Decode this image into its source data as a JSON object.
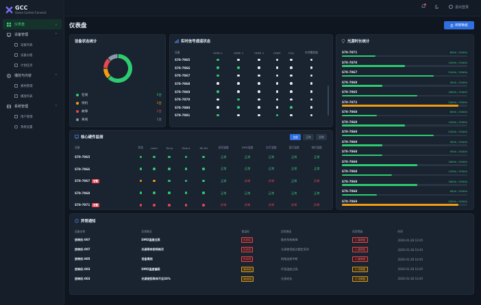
{
  "app": {
    "logo_title": "GCC",
    "logo_sub": "Game Control Connect"
  },
  "sidebar": {
    "dashboard": "仪表盘",
    "device_mgmt": "设备管理",
    "device_list": "设备列表",
    "device_group": "设备分组",
    "schedule": "计划任务",
    "content": "播控与内容",
    "assets": "素材管理",
    "playlist": "播放列表",
    "system": "系统管理",
    "users": "用户管理",
    "settings": "系统设置"
  },
  "topbar": {
    "logout": "退出登录"
  },
  "page": {
    "title": "仪表盘",
    "refresh": "刷新数据"
  },
  "device_status": {
    "title": "设备状态统计",
    "items": [
      {
        "label": "在线",
        "value": "5台",
        "color": "#2ecc71"
      },
      {
        "label": "待机",
        "value": "1台",
        "color": "#f39c12"
      },
      {
        "label": "故障",
        "value": "1台",
        "color": "#e5484d"
      },
      {
        "label": "离线",
        "value": "1台",
        "color": "#8b98a9"
      }
    ],
    "donut": [
      5,
      1,
      1,
      1
    ]
  },
  "signal": {
    "title": "实时信号通道状态",
    "headers": [
      "设备",
      "HDMI 1",
      "HDMI 2",
      "HDMI 3",
      "HDBT",
      "VGA",
      "本地播放器"
    ],
    "rows": [
      {
        "name": "S70-7065",
        "v": [
          "g",
          "w",
          "w",
          "w",
          "w",
          "w"
        ]
      },
      {
        "name": "S70-7066",
        "v": [
          "g",
          "g",
          "w",
          "w",
          "w",
          "w"
        ]
      },
      {
        "name": "S70-7067",
        "v": [
          "g",
          "w",
          "w",
          "w",
          "w",
          "w"
        ]
      },
      {
        "name": "S70-7068",
        "v": [
          "w",
          "w",
          "w",
          "w",
          "w",
          "w"
        ]
      },
      {
        "name": "S70-7069",
        "v": [
          "g",
          "w",
          "w",
          "w",
          "w",
          "w"
        ]
      },
      {
        "name": "S70-7070",
        "v": [
          "w",
          "g",
          "w",
          "w",
          "w",
          "w"
        ]
      },
      {
        "name": "S70-7080",
        "v": [
          "w",
          "g",
          "w",
          "w",
          "g",
          "w"
        ]
      },
      {
        "name": "S70-7081",
        "v": [
          "g",
          "w",
          "w",
          "g",
          "w",
          "w"
        ]
      }
    ]
  },
  "hardware": {
    "title": "核心硬件监测",
    "filters": [
      "全部",
      "正常",
      "异常"
    ],
    "headers": [
      "设备",
      "状态",
      "Laser",
      "Temp",
      "Status",
      "WLAN",
      "滤风温度",
      "DMD温度",
      "红灯温度",
      "蓝灯温度",
      "绿灯温度"
    ],
    "alarm_tag": "告警",
    "rows": [
      {
        "name": "S70-7065",
        "alarm": false,
        "dots": [
          "g",
          "g",
          "g",
          "g",
          "g"
        ],
        "t": [
          "正常",
          "正常",
          "正常",
          "正常",
          "正常"
        ]
      },
      {
        "name": "S70-7066",
        "alarm": false,
        "dots": [
          "g",
          "g",
          "g",
          "g",
          "g"
        ],
        "t": [
          "正常",
          "正常",
          "正常",
          "正常",
          "正常"
        ]
      },
      {
        "name": "S70-7067",
        "alarm": true,
        "dots": [
          "o",
          "o",
          "g",
          "g",
          "g"
        ],
        "t": [
          "正常",
          "异常",
          "异常",
          "正常",
          "异常"
        ]
      },
      {
        "name": "S70-7068",
        "alarm": false,
        "dots": [
          "g",
          "g",
          "g",
          "g",
          "g"
        ],
        "t": [
          "正常",
          "正常",
          "正常",
          "正常",
          "正常"
        ]
      },
      {
        "name": "S70-7071",
        "alarm": true,
        "dots": [
          "r",
          "r",
          "r",
          "r",
          "r"
        ],
        "t": [
          "异常",
          "异常",
          "异常",
          "异常",
          "异常"
        ]
      }
    ]
  },
  "light_source": {
    "title": "光源时长统计",
    "rows": [
      {
        "name": "S70-7071",
        "value": "800h / 3000h",
        "pct": 0.27,
        "color": "#2ecc71"
      },
      {
        "name": "S70-7070",
        "value": "1500h / 3000h",
        "pct": 0.5,
        "color": "#2ecc71"
      },
      {
        "name": "S70-7067",
        "value": "2200h / 3000h",
        "pct": 0.73,
        "color": "#2ecc71"
      },
      {
        "name": "S70-7069",
        "value": "950h / 3000h",
        "pct": 0.32,
        "color": "#2ecc71"
      },
      {
        "name": "S70-7065",
        "value": "1800h / 3000h",
        "pct": 0.6,
        "color": "#2ecc71"
      },
      {
        "name": "S70-7072",
        "value": "2800h / 3000h",
        "pct": 0.93,
        "color": "#f39c12"
      },
      {
        "name": "S70-7068",
        "value": "850h / 3000h",
        "pct": 0.28,
        "color": "#2ecc71"
      },
      {
        "name": "S70-7069",
        "value": "1500h / 3000h",
        "pct": 0.5,
        "color": "#2ecc71"
      },
      {
        "name": "S70-7069",
        "value": "2200h / 3000h",
        "pct": 0.73,
        "color": "#2ecc71"
      },
      {
        "name": "S70-7069",
        "value": "950h / 3000h",
        "pct": 0.32,
        "color": "#2ecc71"
      },
      {
        "name": "S70-7068",
        "value": "950h / 3000h",
        "pct": 0.32,
        "color": "#2ecc71"
      },
      {
        "name": "S70-7069",
        "value": "1800h / 3000h",
        "pct": 0.6,
        "color": "#2ecc71"
      },
      {
        "name": "S70-7068",
        "value": "1200h / 3000h",
        "pct": 0.4,
        "color": "#2ecc71"
      },
      {
        "name": "S70-7069",
        "value": "1800h / 3000h",
        "pct": 0.6,
        "color": "#2ecc71"
      },
      {
        "name": "S70-7068",
        "value": "850h / 3000h",
        "pct": 0.28,
        "color": "#2ecc71"
      },
      {
        "name": "S70-7069",
        "value": "2800h / 3000h",
        "pct": 0.93,
        "color": "#f39c12"
      }
    ]
  },
  "alarms": {
    "title": "异常通知",
    "headers": [
      "设备名称",
      "异常概况",
      "错误码",
      "异常原因",
      "风险等级",
      "时间"
    ],
    "rows": [
      {
        "device": "放映机-007",
        "summary": "DMD温度过高",
        "code": "E-001",
        "ctype": "r",
        "reason": "散热系统故障",
        "level": "高风险",
        "ltype": "r",
        "time": "2026-01-28  10:45"
      },
      {
        "device": "放映机-007",
        "summary": "光源寿命即将耗尽",
        "code": "E-002",
        "ctype": "r",
        "reason": "光源使用超过额定寿命",
        "level": "高风险",
        "ltype": "r",
        "time": "2026-01-28  10:45"
      },
      {
        "device": "放映机-005",
        "summary": "设备离线",
        "code": "E-003",
        "ctype": "r",
        "reason": "网络连接中断",
        "level": "高风险",
        "ltype": "r",
        "time": "2026-01-28  10:45"
      },
      {
        "device": "放映机-003",
        "summary": "DMD温度偏高",
        "code": "W-001",
        "ctype": "y",
        "reason": "环境温度过高",
        "level": "中风险",
        "ltype": "y",
        "time": "2026-01-28  10:45"
      },
      {
        "device": "放映机-003",
        "summary": "光源使用寿命不足30%",
        "code": "W-001",
        "ctype": "y",
        "reason": "光源老化",
        "level": "中风险",
        "ltype": "y",
        "time": "2026-01-28  10:45"
      }
    ]
  },
  "colors": {
    "green": "#2ecc71",
    "orange": "#f39c12",
    "red": "#e5484d",
    "white": "#e6edf5",
    "accent": "#2f6fe0"
  }
}
